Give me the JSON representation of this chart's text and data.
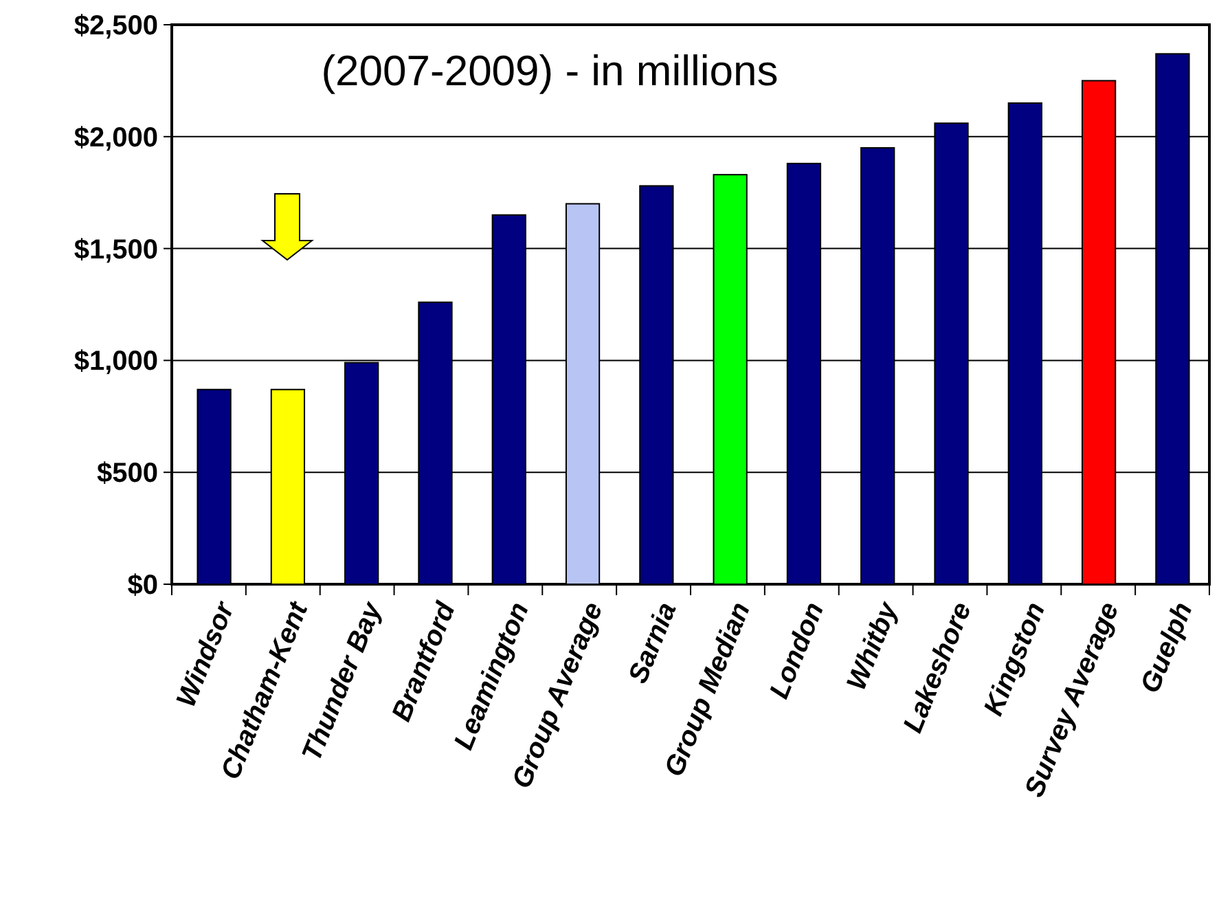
{
  "chart_data": {
    "type": "bar",
    "title": "(2007-2009) - in millions",
    "categories": [
      "Windsor",
      "Chatham-Kent",
      "Thunder Bay",
      "Brantford",
      "Leamington",
      "Group Average",
      "Sarnia",
      "Group Median",
      "London",
      "Whitby",
      "Lakeshore",
      "Kingston",
      "Survey Average",
      "Guelph"
    ],
    "values": [
      870,
      870,
      990,
      1260,
      1650,
      1700,
      1780,
      1830,
      1880,
      1950,
      2060,
      2150,
      2250,
      2370
    ],
    "colors": [
      "#000080",
      "#ffff00",
      "#000080",
      "#000080",
      "#000080",
      "#b8c4f4",
      "#000080",
      "#00ff00",
      "#000080",
      "#000080",
      "#000080",
      "#000080",
      "#ff0000",
      "#000080"
    ],
    "ylim": [
      0,
      2500
    ],
    "yticks": [
      {
        "value": 0,
        "label": "$0"
      },
      {
        "value": 500,
        "label": "$500"
      },
      {
        "value": 1000,
        "label": "$1,000"
      },
      {
        "value": 1500,
        "label": "$1,500"
      },
      {
        "value": 2000,
        "label": "$2,000"
      },
      {
        "value": 2500,
        "label": "$2,500"
      }
    ],
    "grid": true
  }
}
